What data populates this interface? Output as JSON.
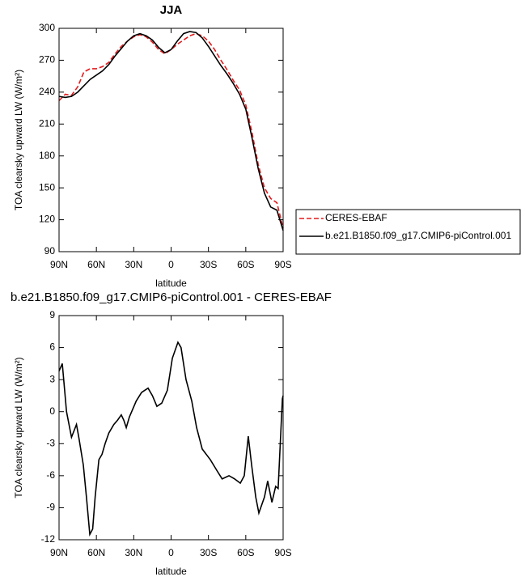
{
  "chart_data": [
    {
      "type": "line",
      "title": "JJA",
      "xlabel": "latitude",
      "ylabel": "TOA clearsky upward LW (W/m²)",
      "x": [
        90,
        85,
        80,
        75,
        70,
        65,
        60,
        55,
        50,
        45,
        40,
        35,
        30,
        25,
        20,
        15,
        10,
        5,
        0,
        -5,
        -10,
        -15,
        -20,
        -25,
        -30,
        -35,
        -40,
        -45,
        -50,
        -55,
        -60,
        -65,
        -70,
        -75,
        -80,
        -85,
        -90
      ],
      "series": [
        {
          "name": "CERES-EBAF",
          "color": "#e41a1c",
          "style": "dashed",
          "values": [
            232,
            238,
            237,
            245,
            259,
            262,
            262,
            264,
            268,
            276,
            283,
            288,
            292,
            294,
            292,
            287,
            280,
            276,
            280,
            285,
            289,
            293,
            295,
            293,
            288,
            280,
            270,
            261,
            251,
            242,
            228,
            202,
            172,
            150,
            140,
            136,
            112
          ]
        },
        {
          "name": "b.e21.B1850.f09_g17.CMIP6-piControl.001",
          "color": "#000000",
          "style": "solid",
          "values": [
            236,
            235,
            236,
            240,
            246,
            252,
            256,
            260,
            266,
            274,
            281,
            288,
            293,
            295,
            293,
            289,
            282,
            277,
            280,
            288,
            295,
            297,
            296,
            291,
            283,
            274,
            265,
            257,
            248,
            238,
            224,
            197,
            168,
            145,
            132,
            129,
            110
          ]
        }
      ],
      "xlim": [
        90,
        -90
      ],
      "xticks": [
        {
          "value": 90,
          "label": "90N"
        },
        {
          "value": 60,
          "label": "60N"
        },
        {
          "value": 30,
          "label": "30N"
        },
        0,
        {
          "value": -30,
          "label": "30S"
        },
        {
          "value": -60,
          "label": "60S"
        },
        {
          "value": -90,
          "label": "90S"
        }
      ],
      "ylim": [
        90,
        300
      ],
      "yticks": [
        90,
        120,
        150,
        180,
        210,
        240,
        270,
        300
      ],
      "legend": "outside right"
    },
    {
      "type": "line",
      "title": "b.e21.B1850.f09_g17.CMIP6-piControl.001 - CERES-EBAF",
      "xlabel": "latitude",
      "ylabel": "TOA clearsky upward LW (W/m²)",
      "x": [
        90,
        87.4,
        84,
        80,
        76,
        74,
        70.5,
        68,
        65.3,
        63,
        61,
        58,
        55.5,
        53,
        50,
        46,
        43,
        40,
        38,
        36,
        33.5,
        28,
        23.7,
        18.5,
        15,
        11.4,
        7.5,
        3,
        -1,
        -5.5,
        -8,
        -12,
        -16.6,
        -20.5,
        -25,
        -31.5,
        -36.7,
        -41,
        -46.5,
        -51,
        -55.6,
        -58.8,
        -62,
        -64.7,
        -68,
        -70.5,
        -75,
        -77.6,
        -81,
        -84,
        -86,
        -89.4,
        -90
      ],
      "series": [
        {
          "color": "#000000",
          "style": "solid",
          "values": [
            3.8,
            4.5,
            0,
            -2.4,
            -1.2,
            -2.5,
            -5,
            -8,
            -11.5,
            -11,
            -8,
            -4.5,
            -4,
            -3,
            -2,
            -1.2,
            -0.8,
            -0.3,
            -0.8,
            -1.5,
            -0.5,
            1,
            1.8,
            2.2,
            1.5,
            0.5,
            0.8,
            2,
            5,
            6.5,
            6,
            3,
            1,
            -1.5,
            -3.5,
            -4.5,
            -5.5,
            -6.3,
            -6,
            -6.3,
            -6.7,
            -6,
            -2.3,
            -5,
            -8,
            -9.5,
            -8,
            -6.5,
            -8.5,
            -7,
            -7.2,
            1.2,
            1.5
          ]
        }
      ],
      "xlim": [
        90,
        -90
      ],
      "xticks": [
        {
          "value": 90,
          "label": "90N"
        },
        {
          "value": 60,
          "label": "60N"
        },
        {
          "value": 30,
          "label": "30N"
        },
        0,
        {
          "value": -30,
          "label": "30S"
        },
        {
          "value": -60,
          "label": "60S"
        },
        {
          "value": -90,
          "label": "90S"
        }
      ],
      "ylim": [
        -12,
        9
      ],
      "yticks": [
        -12,
        -9,
        -6,
        -3,
        0,
        3,
        6,
        9
      ]
    }
  ]
}
